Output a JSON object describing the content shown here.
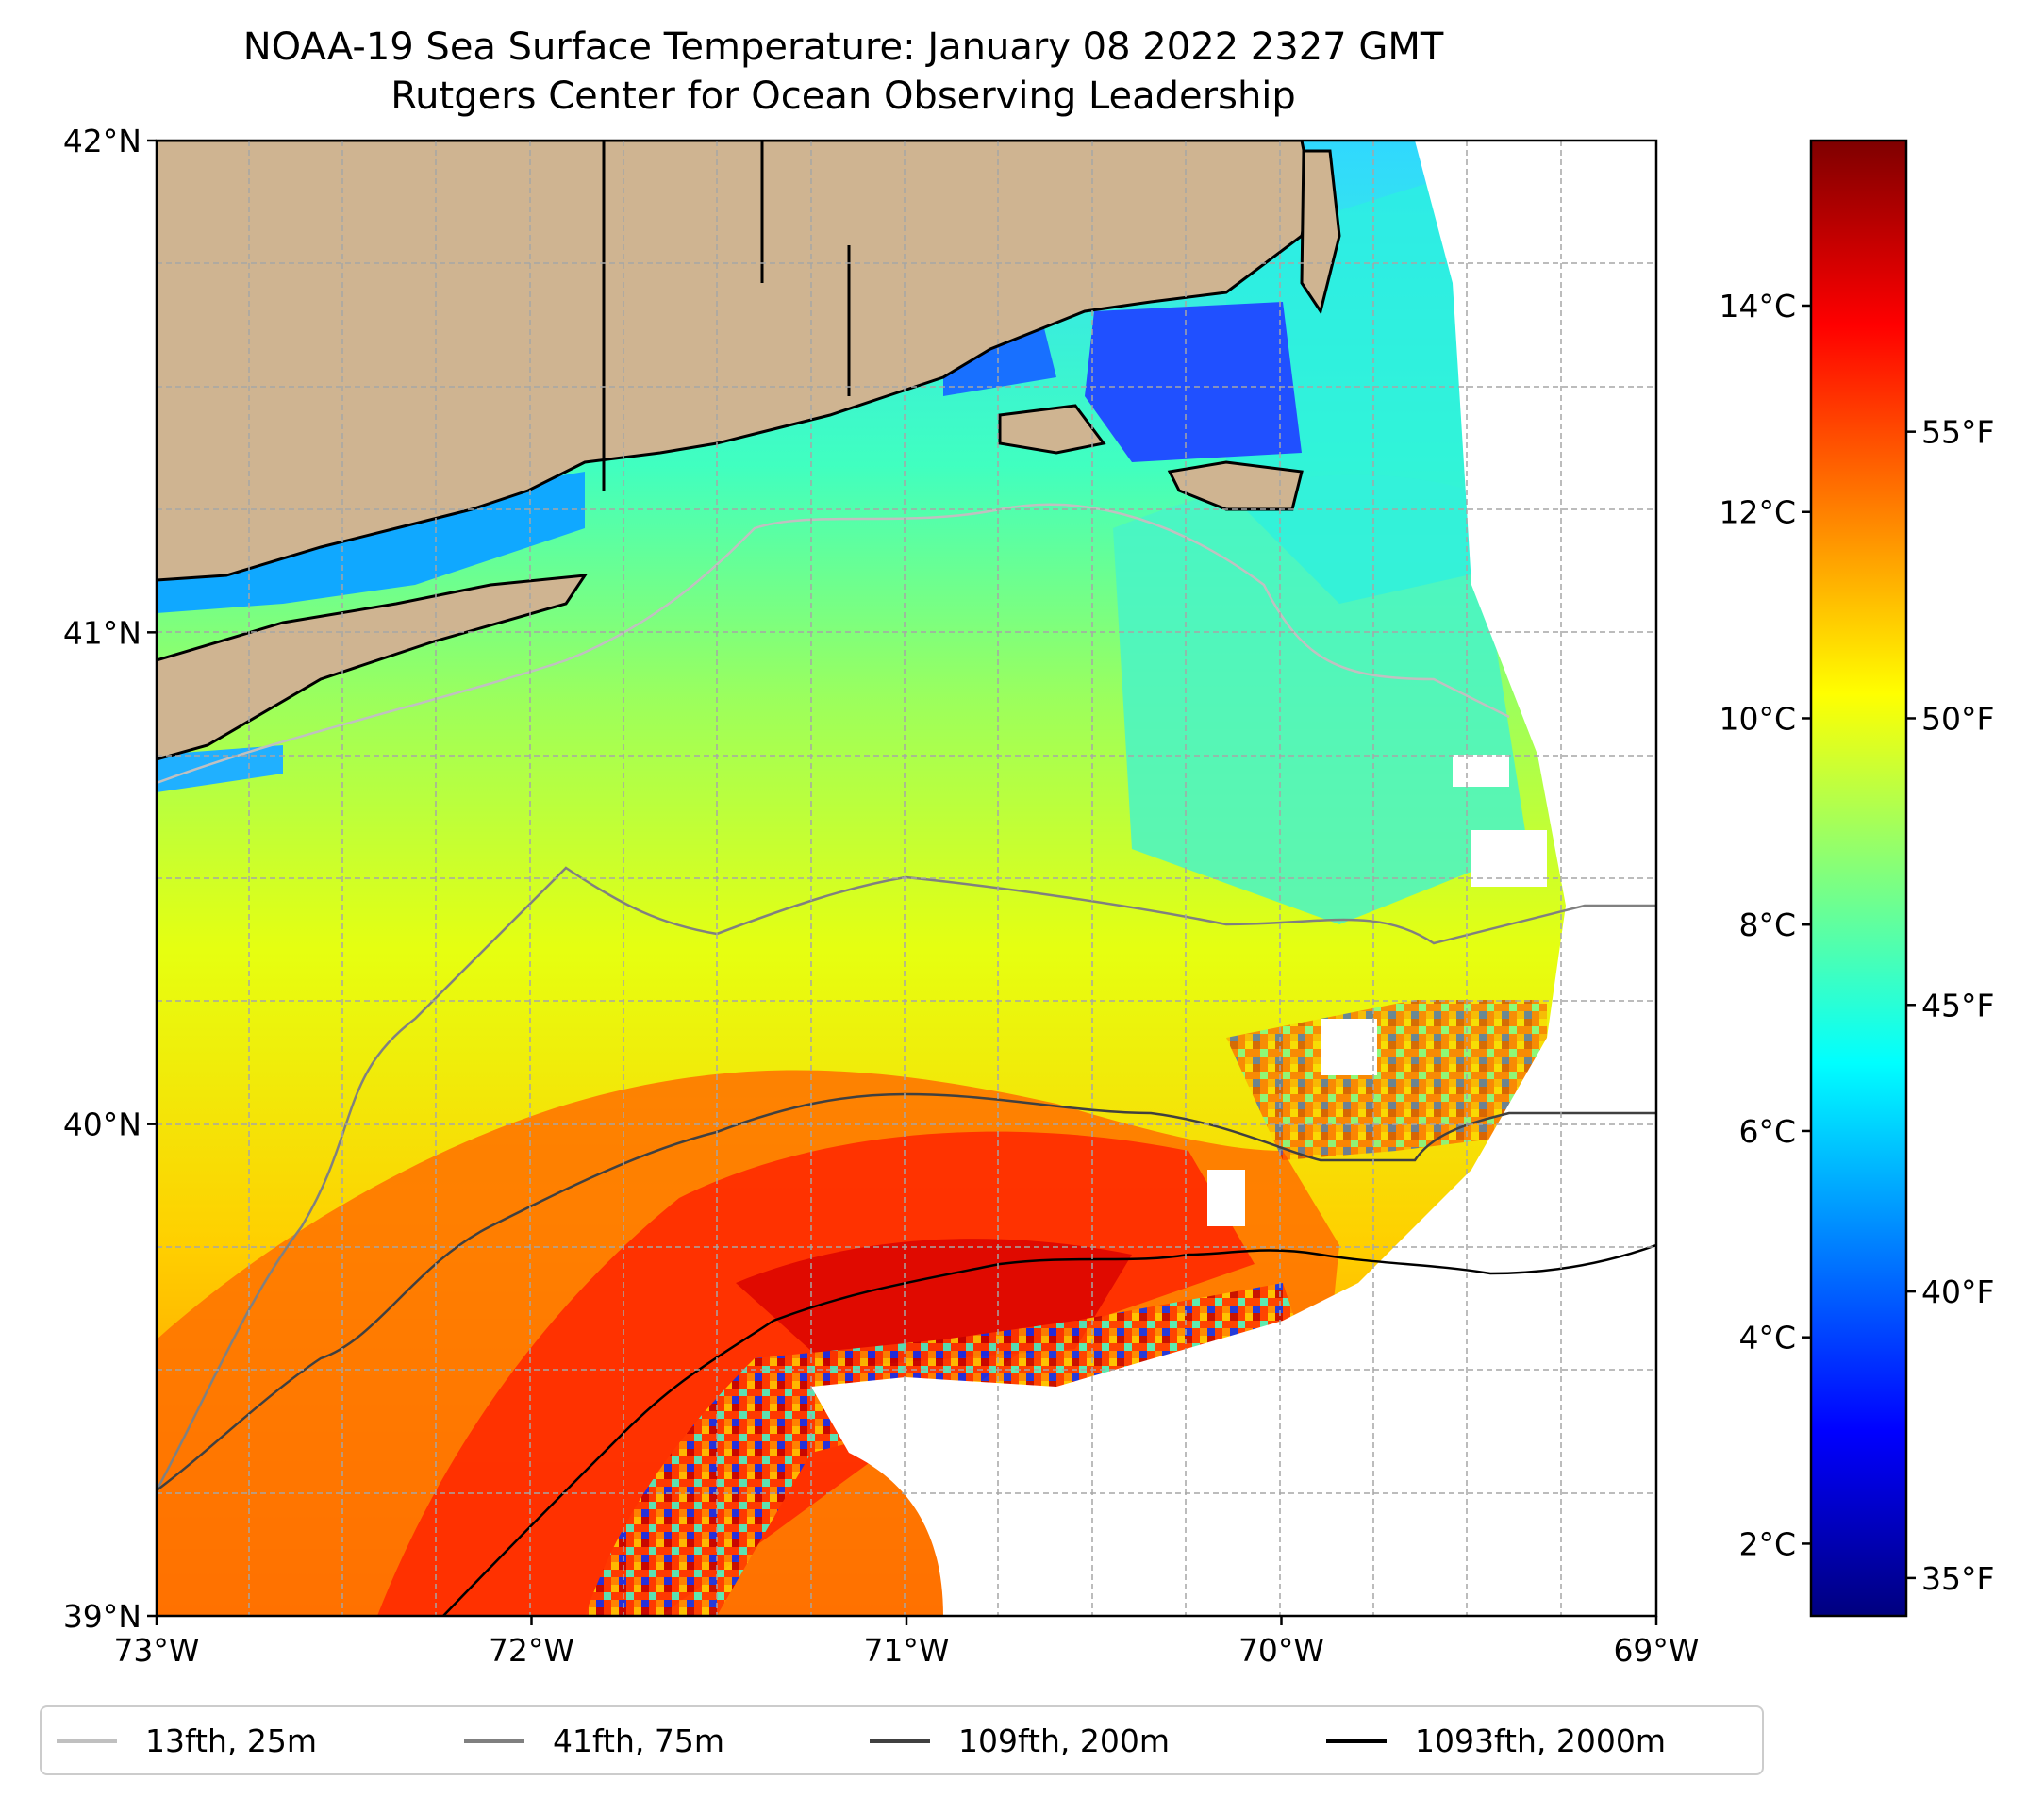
{
  "title": "NOAA-19 Sea Surface Temperature: January 08 2022 2327 GMT",
  "subtitle": "Rutgers Center for Ocean Observing Leadership",
  "axes": {
    "lat_ticks": [
      {
        "value": 42,
        "label": "42°N"
      },
      {
        "value": 41,
        "label": "41°N"
      },
      {
        "value": 40,
        "label": "40°N"
      },
      {
        "value": 39,
        "label": "39°N"
      }
    ],
    "lon_ticks": [
      {
        "value": -73,
        "label": "73°W"
      },
      {
        "value": -72,
        "label": "72°W"
      },
      {
        "value": -71,
        "label": "71°W"
      },
      {
        "value": -70,
        "label": "70°W"
      },
      {
        "value": -69,
        "label": "69°W"
      }
    ],
    "lat_range": [
      39,
      42
    ],
    "lon_range": [
      -73,
      -69
    ]
  },
  "colorbar": {
    "celsius_range": [
      1.3,
      15.6
    ],
    "celsius_ticks": [
      {
        "value": 2,
        "label": "2°C"
      },
      {
        "value": 4,
        "label": "4°C"
      },
      {
        "value": 6,
        "label": "6°C"
      },
      {
        "value": 8,
        "label": "8°C"
      },
      {
        "value": 10,
        "label": "10°C"
      },
      {
        "value": 12,
        "label": "12°C"
      },
      {
        "value": 14,
        "label": "14°C"
      }
    ],
    "fahrenheit_ticks": [
      {
        "value": 35,
        "label": "35°F"
      },
      {
        "value": 40,
        "label": "40°F"
      },
      {
        "value": 45,
        "label": "45°F"
      },
      {
        "value": 50,
        "label": "50°F"
      },
      {
        "value": 55,
        "label": "55°F"
      }
    ],
    "stops": [
      "#00007f",
      "#0000ff",
      "#007fff",
      "#00ffff",
      "#7fff7f",
      "#ffff00",
      "#ff7f00",
      "#ff0000",
      "#7f0000"
    ]
  },
  "legend": [
    {
      "label": "13fth, 25m",
      "color": "#c0c0c0"
    },
    {
      "label": "41fth, 75m",
      "color": "#808080"
    },
    {
      "label": "109fth, 200m",
      "color": "#404040"
    },
    {
      "label": "1093fth, 2000m",
      "color": "#000000"
    }
  ],
  "colors": {
    "land": "#cfb491",
    "no_data": "#ffffff"
  }
}
